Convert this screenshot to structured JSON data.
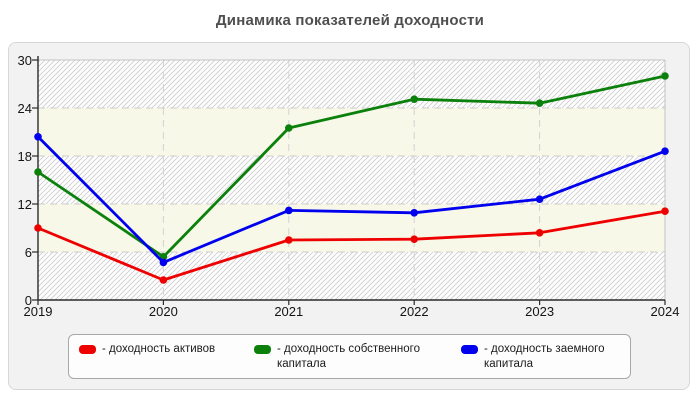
{
  "title": "Динамика показателей доходности",
  "chart_data": {
    "type": "line",
    "title": "Динамика показателей доходности",
    "categories": [
      "2019",
      "2020",
      "2021",
      "2022",
      "2023",
      "2024"
    ],
    "series": [
      {
        "name": "доходность активов",
        "color": "#ee0000",
        "values": [
          9.0,
          2.5,
          7.5,
          7.6,
          8.4,
          11.1
        ]
      },
      {
        "name": "доходность собственного капитала",
        "color": "#0b800b",
        "values": [
          16.0,
          5.4,
          21.5,
          25.1,
          24.6,
          28.0
        ]
      },
      {
        "name": "доходность заемного капитала",
        "color": "#0000ee",
        "values": [
          20.4,
          4.7,
          11.2,
          10.9,
          12.6,
          18.6
        ]
      }
    ],
    "xlabel": "",
    "ylabel": "",
    "ylim": [
      0,
      30
    ],
    "y_ticks": [
      0,
      6,
      12,
      18,
      24,
      30
    ],
    "grid": true,
    "grid_style": "dashed",
    "legend_position": "bottom",
    "plot_band_colors": {
      "hatched_bands": "0-6, 12-18, 24-30",
      "ivory_bands": "6-12, 18-24",
      "ivory_hex": "#f7f8e8"
    }
  },
  "legend": {
    "items": [
      {
        "label": "- доходность активов",
        "color": "#ee0000"
      },
      {
        "label": "- доходность собственного капитала",
        "color": "#0b800b"
      },
      {
        "label": "- доходность заемного капитала",
        "color": "#0000ee"
      }
    ]
  }
}
